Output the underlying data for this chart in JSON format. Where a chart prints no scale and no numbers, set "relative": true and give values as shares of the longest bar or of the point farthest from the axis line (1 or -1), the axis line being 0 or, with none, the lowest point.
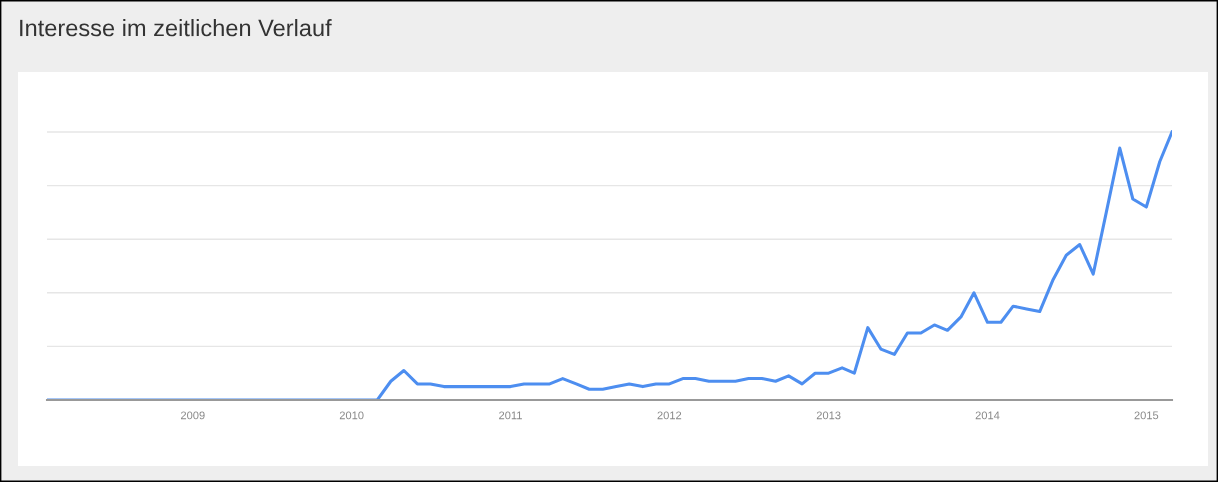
{
  "chart_data": {
    "type": "line",
    "title": "Interesse im zeitlichen Verlauf",
    "relative": true,
    "grid": "y",
    "legend": false,
    "marker": "none",
    "line_style": "solid",
    "x": [
      "2008-02",
      "2008-03",
      "2008-04",
      "2008-05",
      "2008-06",
      "2008-07",
      "2008-08",
      "2008-09",
      "2008-10",
      "2008-11",
      "2008-12",
      "2009-01",
      "2009-02",
      "2009-03",
      "2009-04",
      "2009-05",
      "2009-06",
      "2009-07",
      "2009-08",
      "2009-09",
      "2009-10",
      "2009-11",
      "2009-12",
      "2010-01",
      "2010-02",
      "2010-03",
      "2010-04",
      "2010-05",
      "2010-06",
      "2010-07",
      "2010-08",
      "2010-09",
      "2010-10",
      "2010-11",
      "2010-12",
      "2011-01",
      "2011-02",
      "2011-03",
      "2011-04",
      "2011-05",
      "2011-06",
      "2011-07",
      "2011-08",
      "2011-09",
      "2011-10",
      "2011-11",
      "2011-12",
      "2012-01",
      "2012-02",
      "2012-03",
      "2012-04",
      "2012-05",
      "2012-06",
      "2012-07",
      "2012-08",
      "2012-09",
      "2012-10",
      "2012-11",
      "2012-12",
      "2013-01",
      "2013-02",
      "2013-03",
      "2013-04",
      "2013-05",
      "2013-06",
      "2013-07",
      "2013-08",
      "2013-09",
      "2013-10",
      "2013-11",
      "2013-12",
      "2014-01",
      "2014-02",
      "2014-03",
      "2014-04",
      "2014-05",
      "2014-06",
      "2014-07",
      "2014-08",
      "2014-09",
      "2014-10",
      "2014-11",
      "2014-12",
      "2015-01",
      "2015-02",
      "2015-03"
    ],
    "xlim": [
      "2008-02",
      "2015-03"
    ],
    "xticks": [
      "2009",
      "2010",
      "2011",
      "2012",
      "2013",
      "2014",
      "2015"
    ],
    "series": [
      {
        "color": "#4d8ef0",
        "values": [
          0,
          0,
          0,
          0,
          0,
          0,
          0,
          0,
          0,
          0,
          0,
          0,
          0,
          0,
          0,
          0,
          0,
          0,
          0,
          0,
          0,
          0,
          0,
          0,
          0,
          0,
          0.07,
          0.11,
          0.06,
          0.06,
          0.05,
          0.05,
          0.05,
          0.05,
          0.05,
          0.05,
          0.06,
          0.06,
          0.06,
          0.08,
          0.06,
          0.04,
          0.04,
          0.05,
          0.06,
          0.05,
          0.06,
          0.06,
          0.08,
          0.08,
          0.07,
          0.07,
          0.07,
          0.08,
          0.08,
          0.07,
          0.09,
          0.06,
          0.1,
          0.1,
          0.12,
          0.1,
          0.27,
          0.19,
          0.17,
          0.25,
          0.25,
          0.28,
          0.26,
          0.31,
          0.4,
          0.29,
          0.29,
          0.35,
          0.34,
          0.33,
          0.45,
          0.54,
          0.58,
          0.47,
          0.7,
          0.94,
          0.75,
          0.72,
          0.89,
          1.0
        ]
      }
    ]
  }
}
